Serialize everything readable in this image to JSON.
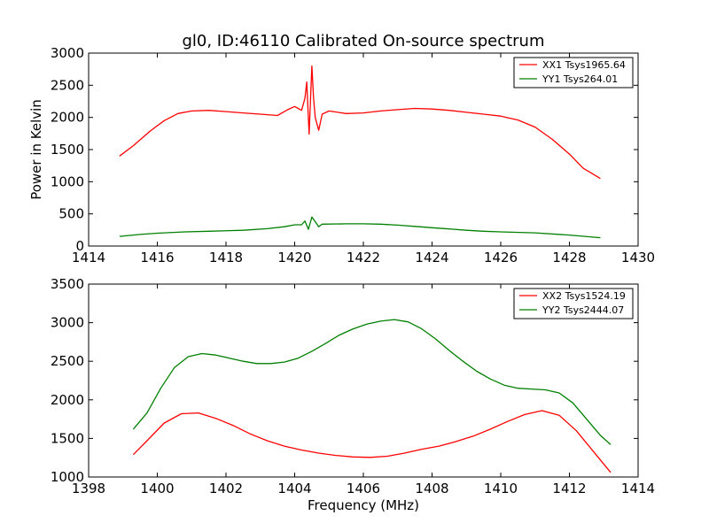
{
  "figure": {
    "title": "gl0, ID:46110 Calibrated On-source spectrum",
    "xlabel": "Frequency (MHz)",
    "ylabel_top": "Power in Kelvin"
  },
  "chart_data": [
    {
      "type": "line",
      "title": "gl0, ID:46110 Calibrated On-source spectrum",
      "xlabel": "",
      "ylabel": "Power in Kelvin",
      "xlim": [
        1414,
        1430
      ],
      "ylim": [
        0,
        3000
      ],
      "xticks": [
        1414,
        1416,
        1418,
        1420,
        1422,
        1424,
        1426,
        1428,
        1430
      ],
      "yticks": [
        0,
        500,
        1000,
        1500,
        2000,
        2500,
        3000
      ],
      "legend_position": "top-right",
      "series": [
        {
          "name": "XX1 Tsys1965.64",
          "color": "#ff0000",
          "points": [
            [
              1414.9,
              1400
            ],
            [
              1415.3,
              1560
            ],
            [
              1415.8,
              1790
            ],
            [
              1416.2,
              1950
            ],
            [
              1416.6,
              2060
            ],
            [
              1417.0,
              2100
            ],
            [
              1417.5,
              2110
            ],
            [
              1418.0,
              2090
            ],
            [
              1418.5,
              2070
            ],
            [
              1419.0,
              2050
            ],
            [
              1419.5,
              2030
            ],
            [
              1419.8,
              2120
            ],
            [
              1420.0,
              2170
            ],
            [
              1420.2,
              2110
            ],
            [
              1420.3,
              2300
            ],
            [
              1420.35,
              2550
            ],
            [
              1420.42,
              1740
            ],
            [
              1420.5,
              2800
            ],
            [
              1420.55,
              2300
            ],
            [
              1420.6,
              2000
            ],
            [
              1420.7,
              1800
            ],
            [
              1420.8,
              2050
            ],
            [
              1421.0,
              2100
            ],
            [
              1421.5,
              2060
            ],
            [
              1422.0,
              2070
            ],
            [
              1422.5,
              2100
            ],
            [
              1423.0,
              2120
            ],
            [
              1423.5,
              2140
            ],
            [
              1424.0,
              2130
            ],
            [
              1424.5,
              2110
            ],
            [
              1425.0,
              2080
            ],
            [
              1425.5,
              2050
            ],
            [
              1426.0,
              2020
            ],
            [
              1426.5,
              1960
            ],
            [
              1427.0,
              1850
            ],
            [
              1427.5,
              1660
            ],
            [
              1428.0,
              1430
            ],
            [
              1428.4,
              1210
            ],
            [
              1428.9,
              1050
            ]
          ]
        },
        {
          "name": "YY1 Tsys264.01",
          "color": "#008000",
          "points": [
            [
              1414.9,
              150
            ],
            [
              1415.5,
              180
            ],
            [
              1416.0,
              200
            ],
            [
              1416.8,
              220
            ],
            [
              1417.5,
              230
            ],
            [
              1418.5,
              245
            ],
            [
              1419.2,
              270
            ],
            [
              1419.7,
              300
            ],
            [
              1420.0,
              330
            ],
            [
              1420.2,
              330
            ],
            [
              1420.3,
              390
            ],
            [
              1420.4,
              260
            ],
            [
              1420.5,
              450
            ],
            [
              1420.6,
              380
            ],
            [
              1420.7,
              300
            ],
            [
              1420.8,
              340
            ],
            [
              1421.5,
              345
            ],
            [
              1422.0,
              345
            ],
            [
              1422.5,
              340
            ],
            [
              1423.0,
              325
            ],
            [
              1423.5,
              305
            ],
            [
              1424.0,
              285
            ],
            [
              1424.5,
              265
            ],
            [
              1425.0,
              245
            ],
            [
              1425.5,
              230
            ],
            [
              1426.0,
              220
            ],
            [
              1427.0,
              205
            ],
            [
              1428.0,
              170
            ],
            [
              1428.9,
              130
            ]
          ]
        }
      ]
    },
    {
      "type": "line",
      "title": "",
      "xlabel": "Frequency (MHz)",
      "ylabel": "",
      "xlim": [
        1398,
        1414
      ],
      "ylim": [
        1000,
        3500
      ],
      "xticks": [
        1398,
        1400,
        1402,
        1404,
        1406,
        1408,
        1410,
        1412,
        1414
      ],
      "yticks": [
        1000,
        1500,
        2000,
        2500,
        3000,
        3500
      ],
      "legend_position": "top-right",
      "series": [
        {
          "name": "XX2 Tsys1524.19",
          "color": "#ff0000",
          "points": [
            [
              1399.3,
              1290
            ],
            [
              1399.7,
              1470
            ],
            [
              1400.2,
              1700
            ],
            [
              1400.7,
              1820
            ],
            [
              1401.2,
              1830
            ],
            [
              1401.7,
              1760
            ],
            [
              1402.2,
              1670
            ],
            [
              1402.7,
              1560
            ],
            [
              1403.2,
              1470
            ],
            [
              1403.7,
              1400
            ],
            [
              1404.2,
              1350
            ],
            [
              1404.7,
              1310
            ],
            [
              1405.2,
              1280
            ],
            [
              1405.7,
              1260
            ],
            [
              1406.2,
              1255
            ],
            [
              1406.7,
              1270
            ],
            [
              1407.2,
              1310
            ],
            [
              1407.7,
              1360
            ],
            [
              1408.2,
              1400
            ],
            [
              1408.7,
              1460
            ],
            [
              1409.2,
              1530
            ],
            [
              1409.7,
              1620
            ],
            [
              1410.2,
              1720
            ],
            [
              1410.7,
              1810
            ],
            [
              1411.2,
              1860
            ],
            [
              1411.7,
              1800
            ],
            [
              1412.2,
              1600
            ],
            [
              1412.7,
              1330
            ],
            [
              1413.2,
              1060
            ]
          ]
        },
        {
          "name": "YY2 Tsys2444.07",
          "color": "#008000",
          "points": [
            [
              1399.3,
              1620
            ],
            [
              1399.7,
              1830
            ],
            [
              1400.1,
              2150
            ],
            [
              1400.5,
              2420
            ],
            [
              1400.9,
              2560
            ],
            [
              1401.3,
              2600
            ],
            [
              1401.7,
              2580
            ],
            [
              1402.1,
              2540
            ],
            [
              1402.5,
              2500
            ],
            [
              1402.9,
              2470
            ],
            [
              1403.3,
              2470
            ],
            [
              1403.7,
              2490
            ],
            [
              1404.1,
              2540
            ],
            [
              1404.5,
              2630
            ],
            [
              1404.9,
              2730
            ],
            [
              1405.3,
              2840
            ],
            [
              1405.7,
              2920
            ],
            [
              1406.1,
              2980
            ],
            [
              1406.5,
              3020
            ],
            [
              1406.9,
              3040
            ],
            [
              1407.3,
              3010
            ],
            [
              1407.7,
              2920
            ],
            [
              1408.1,
              2790
            ],
            [
              1408.5,
              2640
            ],
            [
              1408.9,
              2500
            ],
            [
              1409.3,
              2370
            ],
            [
              1409.7,
              2270
            ],
            [
              1410.1,
              2190
            ],
            [
              1410.5,
              2150
            ],
            [
              1410.9,
              2140
            ],
            [
              1411.3,
              2130
            ],
            [
              1411.7,
              2090
            ],
            [
              1412.1,
              1960
            ],
            [
              1412.5,
              1750
            ],
            [
              1412.9,
              1540
            ],
            [
              1413.2,
              1420
            ]
          ]
        }
      ]
    }
  ]
}
